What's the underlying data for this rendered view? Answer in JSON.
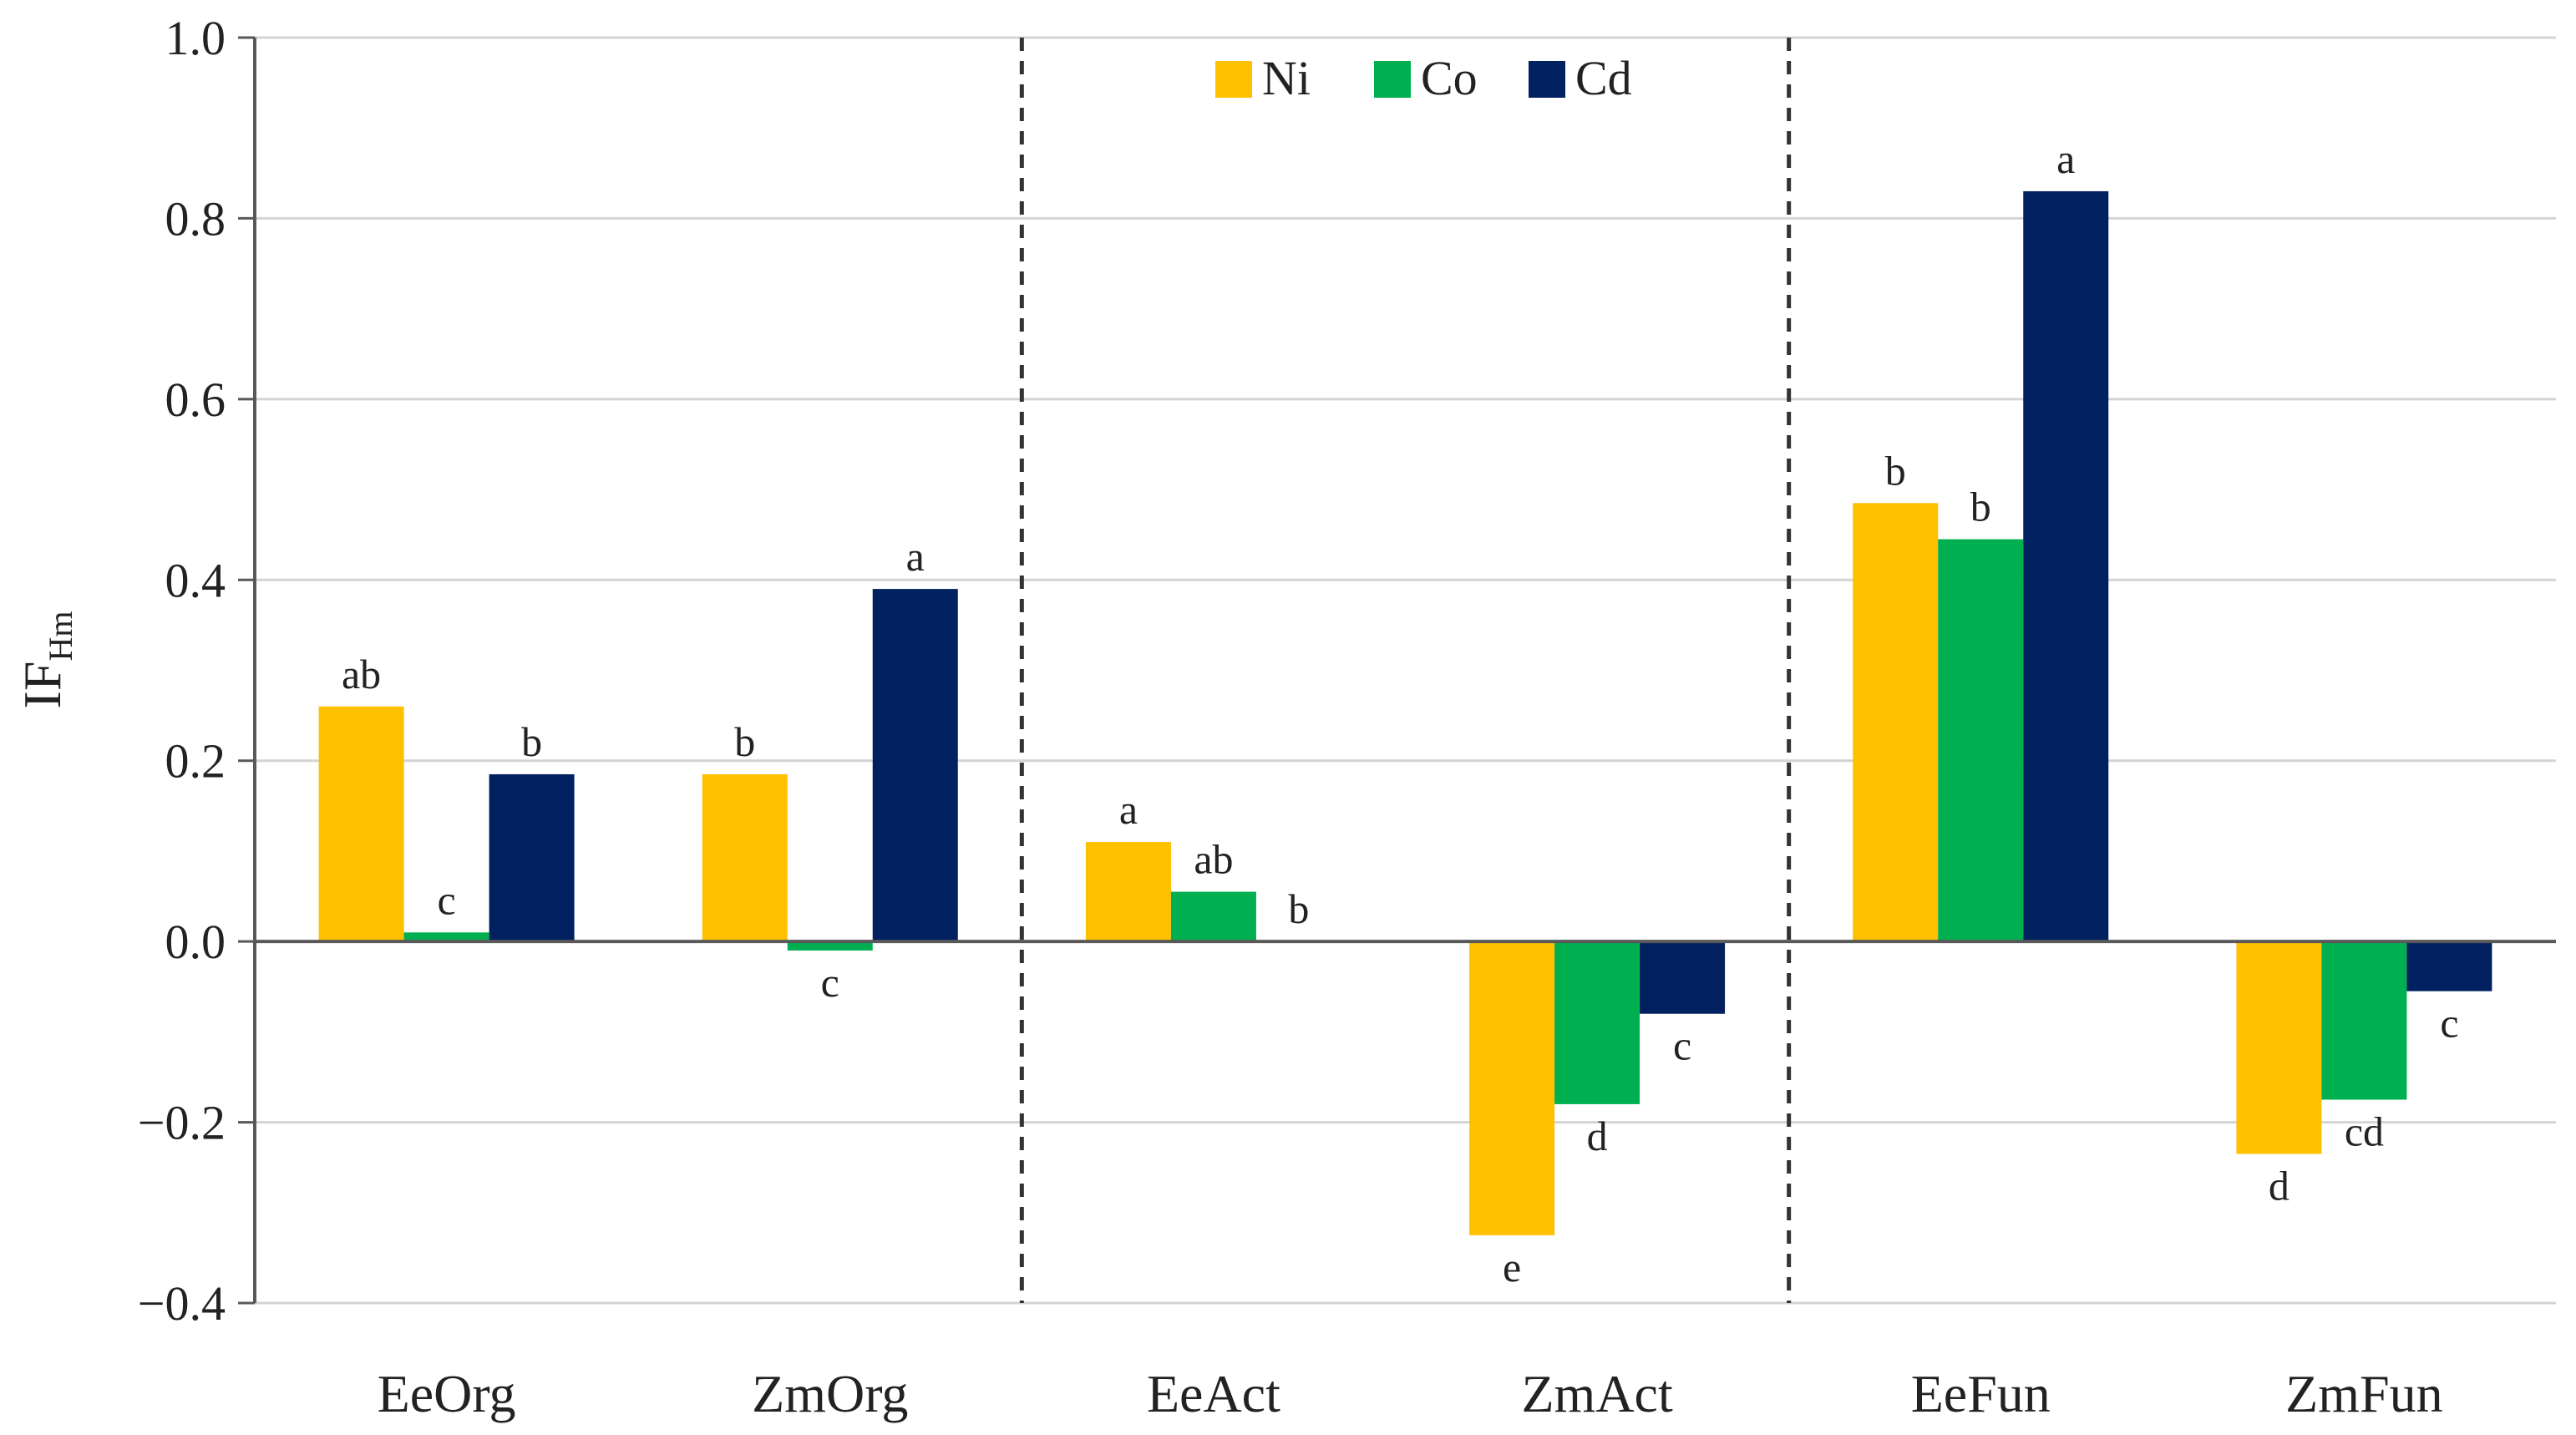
{
  "chart_data": {
    "type": "bar",
    "title": "",
    "xlabel": "",
    "ylabel": "IF",
    "ylabel_subscript": "Hm",
    "ylim": [
      -0.4,
      1.0
    ],
    "yticks": [
      1.0,
      0.8,
      0.6,
      0.4,
      0.2,
      0.0,
      -0.2,
      -0.4
    ],
    "ytick_labels": [
      "1.0",
      "0.8",
      "0.6",
      "0.4",
      "0.2",
      "0.0",
      "−0.2",
      "−0.4"
    ],
    "grid": "horizontal",
    "legend_position": "top-center",
    "categories": [
      "EeOrg",
      "ZmOrg",
      "EeAct",
      "ZmAct",
      "EeFun",
      "ZmFun"
    ],
    "group_separators_after": [
      1,
      3
    ],
    "series": [
      {
        "name": "Ni",
        "color": "#FFC000",
        "values": [
          0.26,
          0.185,
          0.11,
          -0.325,
          0.485,
          -0.235
        ],
        "labels": [
          "ab",
          "b",
          "a",
          "e",
          "b",
          "d"
        ]
      },
      {
        "name": "Co",
        "color": "#00B050",
        "values": [
          0.01,
          -0.01,
          0.055,
          -0.18,
          0.445,
          -0.175
        ],
        "labels": [
          "c",
          "c",
          "ab",
          "d",
          "b",
          "cd"
        ]
      },
      {
        "name": "Cd",
        "color": "#002060",
        "values": [
          0.185,
          0.39,
          0.0,
          -0.08,
          0.83,
          -0.055
        ],
        "labels": [
          "b",
          "a",
          "b",
          "c",
          "a",
          "c"
        ]
      }
    ]
  }
}
